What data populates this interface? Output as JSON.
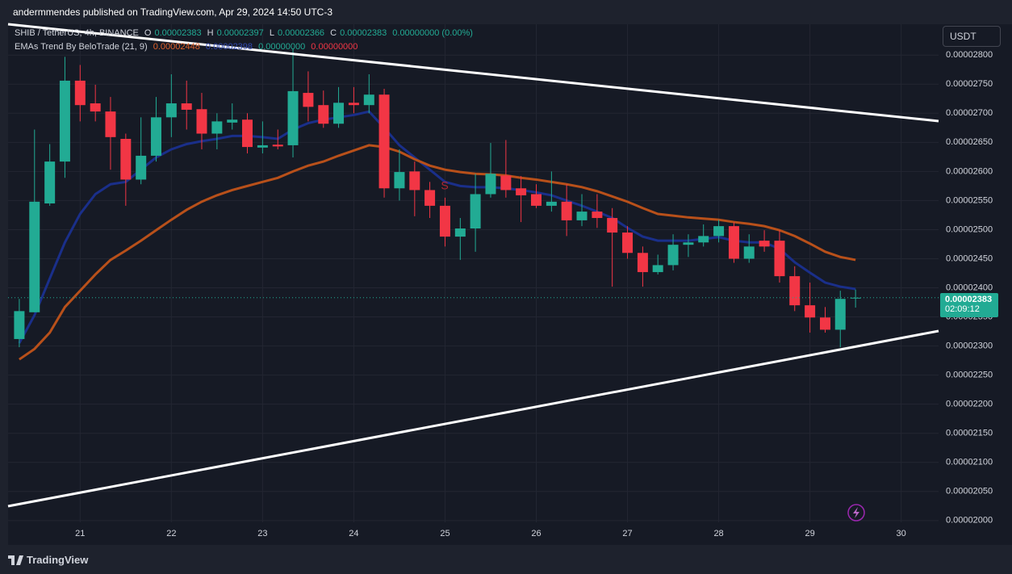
{
  "header": {
    "publisher": "andermmendes published on TradingView.com, Apr 29, 2024 14:50 UTC-3"
  },
  "legend": {
    "symbol": "SHIB / TetherUS, 4h, BINANCE",
    "o_label": "O",
    "o": "0.00002383",
    "h_label": "H",
    "h": "0.00002397",
    "l_label": "L",
    "l": "0.00002366",
    "c_label": "C",
    "c": "0.00002383",
    "change": "0.00000000 (0.00%)",
    "indicator": "EMAs Trend By BeloTrade (21, 9)",
    "ind_values": [
      "0.00002448",
      "0.00002398",
      "0.00000000",
      "0.00000000"
    ]
  },
  "currency_button": "USDT",
  "price_tag": {
    "price": "0.00002383",
    "countdown": "02:09:12"
  },
  "signal_marker": "S",
  "footer": {
    "brand": "TradingView"
  },
  "chart_data": {
    "type": "candlestick",
    "x": [
      20.333,
      20.5,
      20.667,
      20.833,
      21,
      21.167,
      21.333,
      21.5,
      21.667,
      21.833,
      22,
      22.167,
      22.333,
      22.5,
      22.667,
      22.833,
      23,
      23.167,
      23.333,
      23.5,
      23.667,
      23.833,
      24,
      24.167,
      24.333,
      24.5,
      24.667,
      24.833,
      25,
      25.167,
      25.333,
      25.5,
      25.667,
      25.833,
      26,
      26.167,
      26.333,
      26.5,
      26.667,
      26.833,
      27,
      27.167,
      27.333,
      27.5,
      27.667,
      27.833,
      28,
      28.167,
      28.333,
      28.5,
      28.667,
      28.833,
      29,
      29.167,
      29.333,
      29.5
    ],
    "open": [
      2.312e-05,
      2.358e-05,
      2.545e-05,
      2.617e-05,
      2.756e-05,
      2.717e-05,
      2.703e-05,
      2.656e-05,
      2.586e-05,
      2.627e-05,
      2.693e-05,
      2.717e-05,
      2.707e-05,
      2.665e-05,
      2.684e-05,
      2.689e-05,
      2.641e-05,
      2.646e-05,
      2.645e-05,
      2.735e-05,
      2.714e-05,
      2.682e-05,
      2.718e-05,
      2.714e-05,
      2.732e-05,
      2.571e-05,
      2.6e-05,
      2.568e-05,
      2.541e-05,
      2.488e-05,
      2.502e-05,
      2.561e-05,
      2.593e-05,
      2.571e-05,
      2.561e-05,
      2.541e-05,
      2.548e-05,
      2.516e-05,
      2.531e-05,
      2.52e-05,
      2.495e-05,
      2.46e-05,
      2.427e-05,
      2.439e-05,
      2.474e-05,
      2.478e-05,
      2.489e-05,
      2.506e-05,
      2.45e-05,
      2.481e-05,
      2.481e-05,
      2.42e-05,
      2.37e-05,
      2.349e-05,
      2.328e-05,
      2.383e-05
    ],
    "high": [
      2.381e-05,
      2.672e-05,
      2.647e-05,
      2.797e-05,
      2.783e-05,
      2.749e-05,
      2.728e-05,
      2.665e-05,
      2.693e-05,
      2.728e-05,
      2.767e-05,
      2.756e-05,
      2.735e-05,
      2.7e-05,
      2.717e-05,
      2.7e-05,
      2.686e-05,
      2.672e-05,
      2.811e-05,
      2.772e-05,
      2.739e-05,
      2.745e-05,
      2.745e-05,
      2.767e-05,
      2.742e-05,
      2.638e-05,
      2.617e-05,
      2.582e-05,
      2.555e-05,
      2.52e-05,
      2.596e-05,
      2.649e-05,
      2.654e-05,
      2.592e-05,
      2.578e-05,
      2.6e-05,
      2.578e-05,
      2.561e-05,
      2.561e-05,
      2.537e-05,
      2.506e-05,
      2.471e-05,
      2.457e-05,
      2.492e-05,
      2.492e-05,
      2.509e-05,
      2.517e-05,
      2.513e-05,
      2.492e-05,
      2.499e-05,
      2.499e-05,
      2.437e-05,
      2.409e-05,
      2.367e-05,
      2.395e-05,
      2.397e-05
    ],
    "low": [
      2.298e-05,
      2.358e-05,
      2.541e-05,
      2.589e-05,
      2.686e-05,
      2.686e-05,
      2.603e-05,
      2.541e-05,
      2.578e-05,
      2.617e-05,
      2.659e-05,
      2.672e-05,
      2.638e-05,
      2.638e-05,
      2.672e-05,
      2.631e-05,
      2.631e-05,
      2.638e-05,
      2.624e-05,
      2.686e-05,
      2.675e-05,
      2.675e-05,
      2.7e-05,
      2.7e-05,
      2.555e-05,
      2.55e-05,
      2.523e-05,
      2.52e-05,
      2.471e-05,
      2.448e-05,
      2.462e-05,
      2.555e-05,
      2.555e-05,
      2.513e-05,
      2.537e-05,
      2.531e-05,
      2.489e-05,
      2.506e-05,
      2.503e-05,
      2.402e-05,
      2.45e-05,
      2.402e-05,
      2.423e-05,
      2.43e-05,
      2.453e-05,
      2.471e-05,
      2.478e-05,
      2.443e-05,
      2.443e-05,
      2.462e-05,
      2.409e-05,
      2.36e-05,
      2.323e-05,
      2.323e-05,
      2.298e-05,
      2.366e-05
    ],
    "close": [
      2.36e-05,
      2.548e-05,
      2.617e-05,
      2.756e-05,
      2.714e-05,
      2.703e-05,
      2.659e-05,
      2.586e-05,
      2.627e-05,
      2.693e-05,
      2.717e-05,
      2.706e-05,
      2.665e-05,
      2.686e-05,
      2.689e-05,
      2.642e-05,
      2.645e-05,
      2.643e-05,
      2.738e-05,
      2.711e-05,
      2.682e-05,
      2.718e-05,
      2.714e-05,
      2.732e-05,
      2.571e-05,
      2.599e-05,
      2.568e-05,
      2.541e-05,
      2.488e-05,
      2.502e-05,
      2.561e-05,
      2.596e-05,
      2.568e-05,
      2.559e-05,
      2.541e-05,
      2.548e-05,
      2.516e-05,
      2.531e-05,
      2.52e-05,
      2.495e-05,
      2.46e-05,
      2.427e-05,
      2.439e-05,
      2.474e-05,
      2.478e-05,
      2.489e-05,
      2.506e-05,
      2.45e-05,
      2.471e-05,
      2.471e-05,
      2.42e-05,
      2.37e-05,
      2.349e-05,
      2.328e-05,
      2.381e-05,
      2.383e-05
    ],
    "up_color": "#22ab94",
    "down_color": "#f23645",
    "overlays": [
      {
        "color": "#1a2f8a",
        "values": [
          2.305e-05,
          2.353e-05,
          2.416e-05,
          2.478e-05,
          2.527e-05,
          2.561e-05,
          2.578e-05,
          2.582e-05,
          2.603e-05,
          2.624e-05,
          2.638e-05,
          2.647e-05,
          2.652e-05,
          2.656e-05,
          2.661e-05,
          2.661e-05,
          2.659e-05,
          2.656e-05,
          2.672e-05,
          2.683e-05,
          2.689e-05,
          2.693e-05,
          2.697e-05,
          2.703e-05,
          2.675e-05,
          2.645e-05,
          2.624e-05,
          2.603e-05,
          2.582e-05,
          2.575e-05,
          2.573e-05,
          2.573e-05,
          2.571e-05,
          2.568e-05,
          2.564e-05,
          2.559e-05,
          2.55e-05,
          2.541e-05,
          2.531e-05,
          2.52e-05,
          2.503e-05,
          2.488e-05,
          2.481e-05,
          2.481e-05,
          2.481e-05,
          2.484e-05,
          2.487e-05,
          2.481e-05,
          2.478e-05,
          2.478e-05,
          2.467e-05,
          2.444e-05,
          2.426e-05,
          2.409e-05,
          2.402e-05,
          2.398e-05
        ]
      },
      {
        "color": "#b8501a",
        "values": [
          2.277e-05,
          2.295e-05,
          2.323e-05,
          2.367e-05,
          2.395e-05,
          2.423e-05,
          2.448e-05,
          2.464e-05,
          2.481e-05,
          2.499e-05,
          2.517e-05,
          2.534e-05,
          2.548e-05,
          2.559e-05,
          2.568e-05,
          2.575e-05,
          2.582e-05,
          2.589e-05,
          2.6e-05,
          2.61e-05,
          2.617e-05,
          2.627e-05,
          2.636e-05,
          2.645e-05,
          2.642e-05,
          2.634e-05,
          2.621e-05,
          2.61e-05,
          2.603e-05,
          2.599e-05,
          2.596e-05,
          2.595e-05,
          2.593e-05,
          2.589e-05,
          2.586e-05,
          2.582e-05,
          2.578e-05,
          2.573e-05,
          2.566e-05,
          2.557e-05,
          2.548e-05,
          2.537e-05,
          2.527e-05,
          2.524e-05,
          2.521e-05,
          2.519e-05,
          2.517e-05,
          2.513e-05,
          2.51e-05,
          2.506e-05,
          2.499e-05,
          2.489e-05,
          2.476e-05,
          2.462e-05,
          2.453e-05,
          2.448e-05
        ]
      }
    ],
    "xlim": [
      20.21,
      30.41
    ],
    "xticks": [
      21,
      22,
      23,
      24,
      25,
      26,
      27,
      28,
      29,
      30
    ],
    "ylim": [
      1.997e-05,
      2.853e-05
    ],
    "yticks": [
      {
        "value": 2e-05,
        "label": "0.00002000"
      },
      {
        "value": 2.05e-05,
        "label": "0.00002050"
      },
      {
        "value": 2.1e-05,
        "label": "0.00002100"
      },
      {
        "value": 2.15e-05,
        "label": "0.00002150"
      },
      {
        "value": 2.2e-05,
        "label": "0.00002200"
      },
      {
        "value": 2.25e-05,
        "label": "0.00002250"
      },
      {
        "value": 2.3e-05,
        "label": "0.00002300"
      },
      {
        "value": 2.35e-05,
        "label": "0.00002350"
      },
      {
        "value": 2.4e-05,
        "label": "0.00002400"
      },
      {
        "value": 2.45e-05,
        "label": "0.00002450"
      },
      {
        "value": 2.5e-05,
        "label": "0.00002500"
      },
      {
        "value": 2.55e-05,
        "label": "0.00002550"
      },
      {
        "value": 2.6e-05,
        "label": "0.00002600"
      },
      {
        "value": 2.65e-05,
        "label": "0.00002650"
      },
      {
        "value": 2.7e-05,
        "label": "0.00002700"
      },
      {
        "value": 2.75e-05,
        "label": "0.00002750"
      },
      {
        "value": 2.8e-05,
        "label": "0.00002800"
      }
    ],
    "grid": true
  }
}
